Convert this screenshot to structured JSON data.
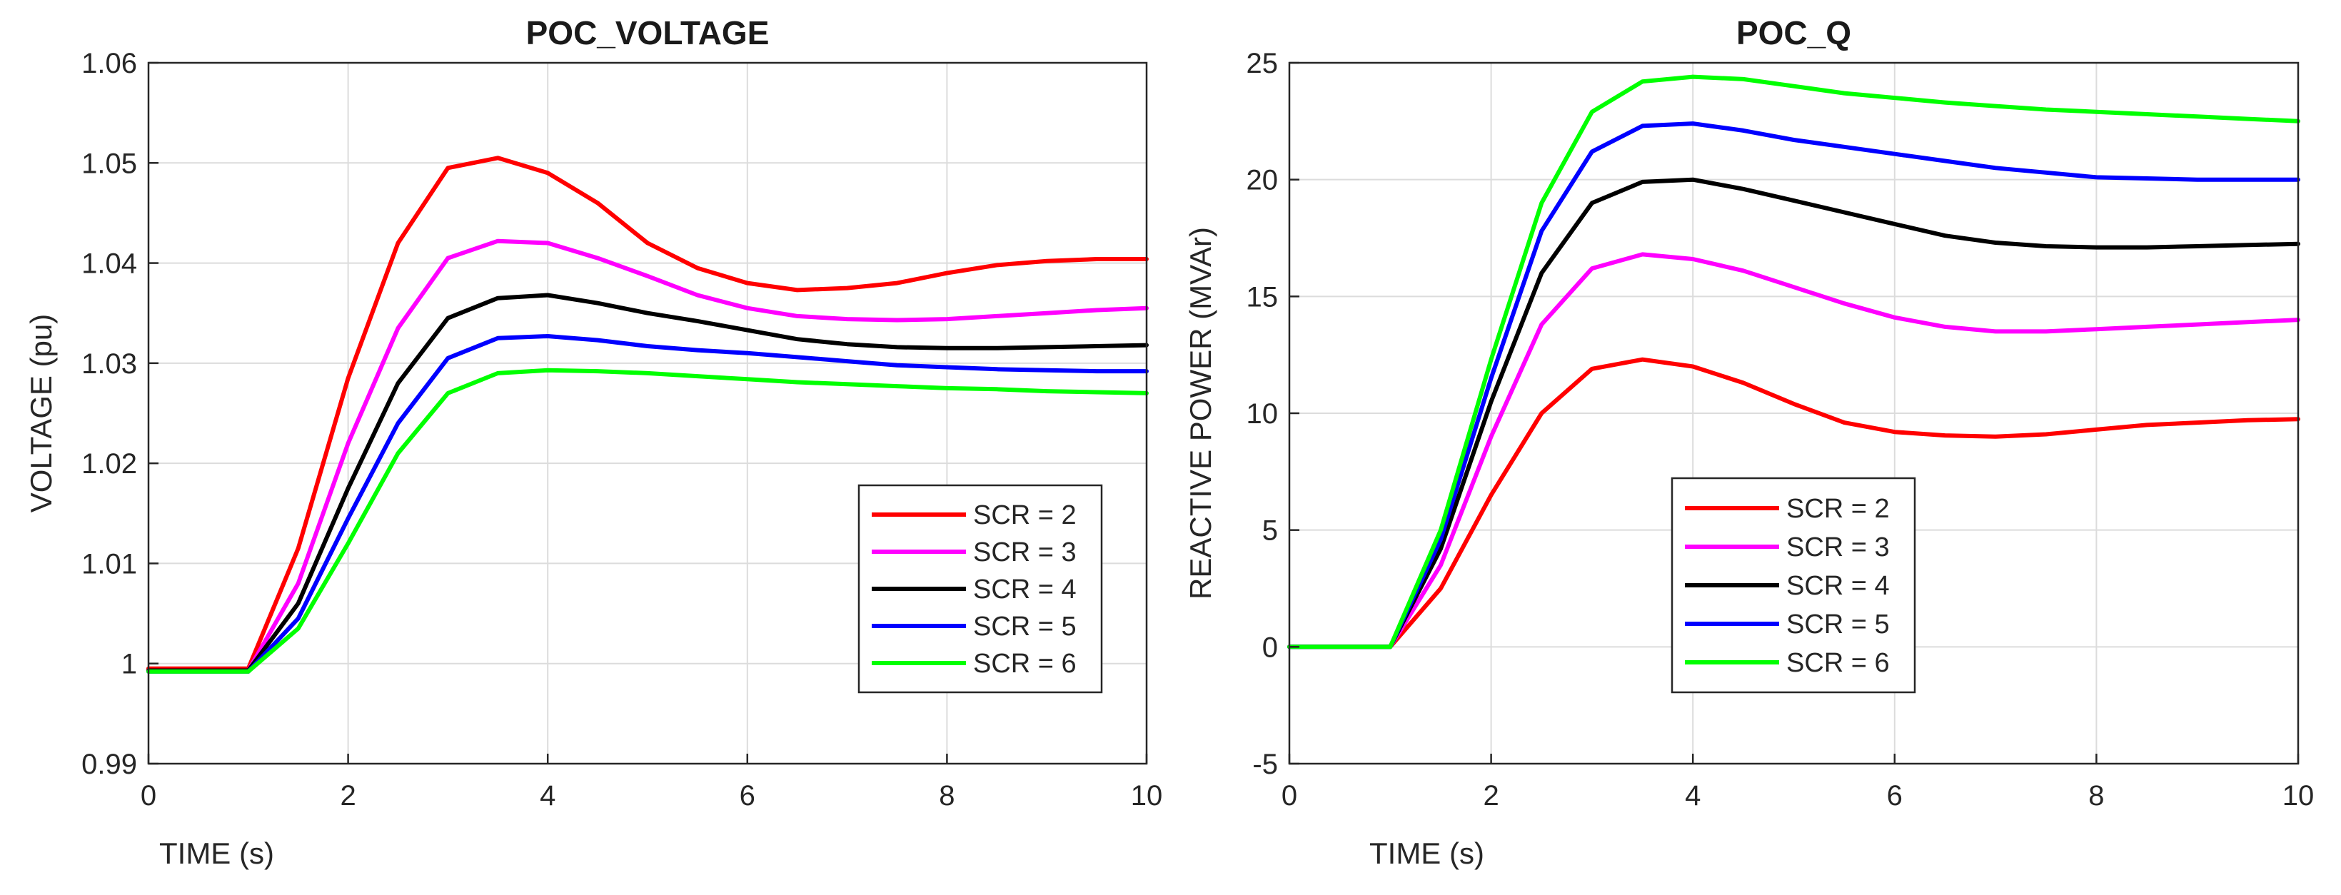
{
  "chart_data": [
    {
      "type": "line",
      "title": "POC_VOLTAGE",
      "xlabel": "TIME (s)",
      "ylabel": "VOLTAGE (pu)",
      "xlim": [
        0,
        10
      ],
      "ylim": [
        0.99,
        1.06
      ],
      "xticks": [
        0,
        2,
        4,
        6,
        8,
        10
      ],
      "xtick_labels": [
        "0",
        "2",
        "4",
        "6",
        "8",
        "10"
      ],
      "yticks": [
        0.99,
        1.0,
        1.01,
        1.02,
        1.03,
        1.04,
        1.05,
        1.06
      ],
      "ytick_labels": [
        "0.99",
        "1",
        "1.01",
        "1.02",
        "1.03",
        "1.04",
        "1.05",
        "1.06"
      ],
      "grid": true,
      "legend_position": "lower-right",
      "x": [
        0,
        1,
        1.5,
        2,
        2.5,
        3,
        3.5,
        4,
        4.5,
        5,
        5.5,
        6,
        6.5,
        7,
        7.5,
        8,
        8.5,
        9,
        9.5,
        10
      ],
      "series": [
        {
          "name": "SCR = 2",
          "color": "#ff0000",
          "values": [
            0.9995,
            0.9995,
            1.0115,
            1.0285,
            1.042,
            1.0495,
            1.0505,
            1.049,
            1.046,
            1.042,
            1.0395,
            1.038,
            1.0373,
            1.0375,
            1.038,
            1.039,
            1.0398,
            1.0402,
            1.0404,
            1.0404
          ]
        },
        {
          "name": "SCR = 3",
          "color": "#ff00ff",
          "values": [
            0.9993,
            0.9993,
            1.008,
            1.022,
            1.0335,
            1.0405,
            1.0422,
            1.042,
            1.0405,
            1.0387,
            1.0368,
            1.0355,
            1.0347,
            1.0344,
            1.0343,
            1.0344,
            1.0347,
            1.035,
            1.0353,
            1.0355
          ]
        },
        {
          "name": "SCR = 4",
          "color": "#000000",
          "values": [
            0.9993,
            0.9993,
            1.006,
            1.0175,
            1.028,
            1.0345,
            1.0365,
            1.0368,
            1.036,
            1.035,
            1.0342,
            1.0333,
            1.0324,
            1.0319,
            1.0316,
            1.0315,
            1.0315,
            1.0316,
            1.0317,
            1.0318
          ]
        },
        {
          "name": "SCR = 5",
          "color": "#0000ff",
          "values": [
            0.9992,
            0.9992,
            1.0045,
            1.0145,
            1.024,
            1.0305,
            1.0325,
            1.0327,
            1.0323,
            1.0317,
            1.0313,
            1.031,
            1.0306,
            1.0302,
            1.0298,
            1.0296,
            1.0294,
            1.0293,
            1.0292,
            1.0292
          ]
        },
        {
          "name": "SCR = 6",
          "color": "#00ff00",
          "values": [
            0.9992,
            0.9992,
            1.0035,
            1.012,
            1.021,
            1.027,
            1.029,
            1.0293,
            1.0292,
            1.029,
            1.0287,
            1.0284,
            1.0281,
            1.0279,
            1.0277,
            1.0275,
            1.0274,
            1.0272,
            1.0271,
            1.027
          ]
        }
      ]
    },
    {
      "type": "line",
      "title": "POC_Q",
      "xlabel": "TIME (s)",
      "ylabel": "REACTIVE POWER (MVAr)",
      "xlim": [
        0,
        10
      ],
      "ylim": [
        -5,
        25
      ],
      "xticks": [
        0,
        2,
        4,
        6,
        8,
        10
      ],
      "xtick_labels": [
        "0",
        "2",
        "4",
        "6",
        "8",
        "10"
      ],
      "yticks": [
        -5,
        0,
        5,
        10,
        15,
        20,
        25
      ],
      "ytick_labels": [
        "-5",
        "0",
        "5",
        "10",
        "15",
        "20",
        "25"
      ],
      "grid": true,
      "legend_position": "lower-center",
      "x": [
        0,
        1,
        1.5,
        2,
        2.5,
        3,
        3.5,
        4,
        4.5,
        5,
        5.5,
        6,
        6.5,
        7,
        7.5,
        8,
        8.5,
        9,
        9.5,
        10
      ],
      "series": [
        {
          "name": "SCR = 2",
          "color": "#ff0000",
          "values": [
            0,
            0,
            2.5,
            6.5,
            10.0,
            11.9,
            12.3,
            12.0,
            11.3,
            10.4,
            9.6,
            9.2,
            9.05,
            9.0,
            9.1,
            9.3,
            9.5,
            9.6,
            9.7,
            9.75
          ]
        },
        {
          "name": "SCR = 3",
          "color": "#ff00ff",
          "values": [
            0,
            0,
            3.5,
            9.0,
            13.8,
            16.2,
            16.8,
            16.6,
            16.1,
            15.4,
            14.7,
            14.1,
            13.7,
            13.5,
            13.5,
            13.6,
            13.7,
            13.8,
            13.9,
            14.0
          ]
        },
        {
          "name": "SCR = 4",
          "color": "#000000",
          "values": [
            0,
            0,
            4.2,
            10.5,
            16.0,
            19.0,
            19.9,
            20.0,
            19.6,
            19.1,
            18.6,
            18.1,
            17.6,
            17.3,
            17.15,
            17.1,
            17.1,
            17.15,
            17.2,
            17.25
          ]
        },
        {
          "name": "SCR = 5",
          "color": "#0000ff",
          "values": [
            0,
            0,
            4.6,
            11.5,
            17.8,
            21.2,
            22.3,
            22.4,
            22.1,
            21.7,
            21.4,
            21.1,
            20.8,
            20.5,
            20.3,
            20.1,
            20.05,
            20.0,
            20.0,
            20.0
          ]
        },
        {
          "name": "SCR = 6",
          "color": "#00ff00",
          "values": [
            0,
            0,
            5.0,
            12.3,
            19.0,
            22.9,
            24.2,
            24.4,
            24.3,
            24.0,
            23.7,
            23.5,
            23.3,
            23.15,
            23.0,
            22.9,
            22.8,
            22.7,
            22.6,
            22.5
          ]
        }
      ]
    }
  ]
}
